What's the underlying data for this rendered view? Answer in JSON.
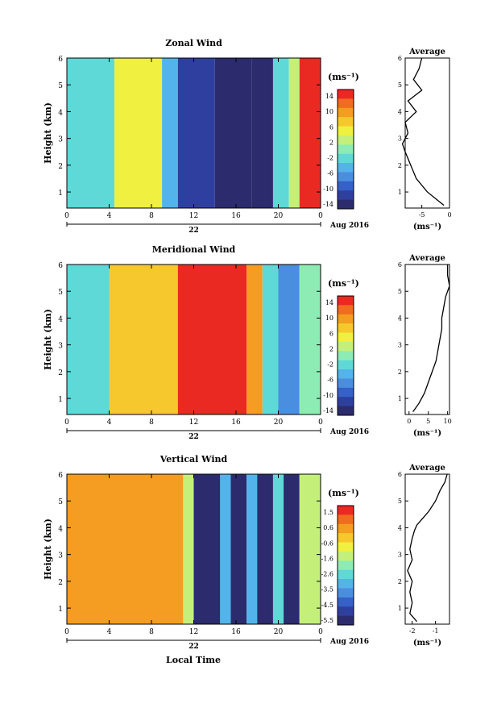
{
  "date_label": "Aug 2016",
  "day_label": "22",
  "unit_label": "(ms⁻¹)",
  "avg_unit_label": "(ms⁻¹)",
  "y_axis_label": "Height (km)",
  "x_axis_label": "Local Time",
  "avg_title": "Average",
  "x_ticks": [
    "0",
    "4",
    "8",
    "12",
    "16",
    "20",
    "0"
  ],
  "height_ticks": [
    "1",
    "2",
    "3",
    "4",
    "5",
    "6"
  ],
  "colormap": [
    "#2b2b6e",
    "#2f3fa0",
    "#3561c8",
    "#4a8ee0",
    "#52b4ea",
    "#5fd8d8",
    "#8cecb4",
    "#c4f07a",
    "#f0f040",
    "#f7c82e",
    "#f59c22",
    "#f06c1e",
    "#ea2a22"
  ],
  "chart_data": [
    {
      "type": "heatmap",
      "title": "Zonal Wind",
      "xlabel": "",
      "ylabel": "Height (km)",
      "x_range_hours": [
        0,
        24
      ],
      "ylim": [
        0.4,
        6
      ],
      "colorbar_range": [
        -15,
        15
      ],
      "colorbar_ticks": [
        "14",
        "10",
        "6",
        "2",
        "-2",
        "-6",
        "-10",
        "-14"
      ],
      "time_blocks_hours": [
        0,
        4.5,
        9,
        10.5,
        14,
        17.5,
        19.5,
        21,
        22,
        24
      ],
      "block_values_ms": [
        -2,
        4,
        -5,
        -11,
        -15,
        -13,
        -3,
        3,
        15
      ],
      "average_profile": {
        "height_km": [
          0.5,
          1.0,
          1.5,
          2.0,
          2.5,
          2.8,
          3.2,
          3.6,
          4.0,
          4.4,
          4.8,
          5.2,
          5.6,
          6.0
        ],
        "value_ms": [
          -1,
          -4,
          -6,
          -7,
          -8,
          -8.5,
          -7.5,
          -8,
          -6,
          -7.5,
          -5,
          -6.5,
          -5.5,
          -5
        ],
        "xlim": [
          -8,
          0
        ],
        "x_ticks": [
          "-5",
          "0"
        ],
        "height_ticks": [
          "1",
          "2",
          "3",
          "4",
          "5",
          "6"
        ]
      }
    },
    {
      "type": "heatmap",
      "title": "Meridional Wind",
      "xlabel": "",
      "ylabel": "Height (km)",
      "x_range_hours": [
        0,
        24
      ],
      "ylim": [
        0.4,
        6
      ],
      "colorbar_range": [
        -15,
        15
      ],
      "colorbar_ticks": [
        "14",
        "10",
        "6",
        "2",
        "-2",
        "-6",
        "-10",
        "-14"
      ],
      "time_blocks_hours": [
        0,
        4,
        8,
        10.5,
        17,
        18.5,
        20,
        22,
        24
      ],
      "block_values_ms": [
        -3,
        8,
        6,
        13,
        10,
        -3,
        -6,
        -1
      ],
      "average_profile": {
        "height_km": [
          0.5,
          0.8,
          1.2,
          1.6,
          2.0,
          2.4,
          2.8,
          3.2,
          3.6,
          4.0,
          4.4,
          4.8,
          5.2,
          5.6,
          6.0
        ],
        "value_ms": [
          1,
          2.5,
          4,
          5,
          6,
          7,
          7.5,
          8,
          8.5,
          8.5,
          9,
          9.5,
          10.5,
          10,
          10
        ],
        "xlim": [
          -1,
          10.5
        ],
        "x_ticks": [
          "0",
          "5",
          "10"
        ],
        "height_ticks": [
          "1",
          "2",
          "3",
          "4",
          "5",
          "6"
        ]
      }
    },
    {
      "type": "heatmap",
      "title": "Vertical Wind",
      "xlabel": "Local Time",
      "ylabel": "Height (km)",
      "x_range_hours": [
        0,
        24
      ],
      "ylim": [
        0.4,
        6
      ],
      "colorbar_range": [
        -5.9,
        1.9
      ],
      "colorbar_ticks": [
        "1.5",
        "0.6",
        "-0.6",
        "-1.6",
        "-2.6",
        "-3.5",
        "-4.5",
        "-5.5"
      ],
      "time_blocks_hours": [
        0,
        11,
        12,
        14.5,
        15.5,
        17,
        18,
        19.5,
        20.5,
        22,
        24
      ],
      "block_values_ms": [
        0.3,
        -1.5,
        -5.6,
        -3,
        -5.6,
        -3.5,
        -5.6,
        -2.5,
        -5.6,
        -1.5
      ],
      "average_profile": {
        "height_km": [
          0.5,
          0.8,
          1.2,
          1.6,
          2.0,
          2.4,
          2.8,
          3.2,
          3.6,
          3.9,
          4.1,
          4.3,
          4.6,
          5.0,
          5.4,
          5.7,
          6.0
        ],
        "value_ms": [
          -1.8,
          -2.1,
          -2.0,
          -2.1,
          -2.0,
          -2.2,
          -2.0,
          -2.1,
          -2.0,
          -1.9,
          -1.8,
          -1.6,
          -1.3,
          -1.0,
          -0.8,
          -0.6,
          -0.5
        ],
        "xlim": [
          -2.3,
          -0.4
        ],
        "x_ticks": [
          "-2",
          "-1"
        ],
        "height_ticks": [
          "1",
          "2",
          "3",
          "4",
          "5",
          "6"
        ]
      }
    }
  ]
}
